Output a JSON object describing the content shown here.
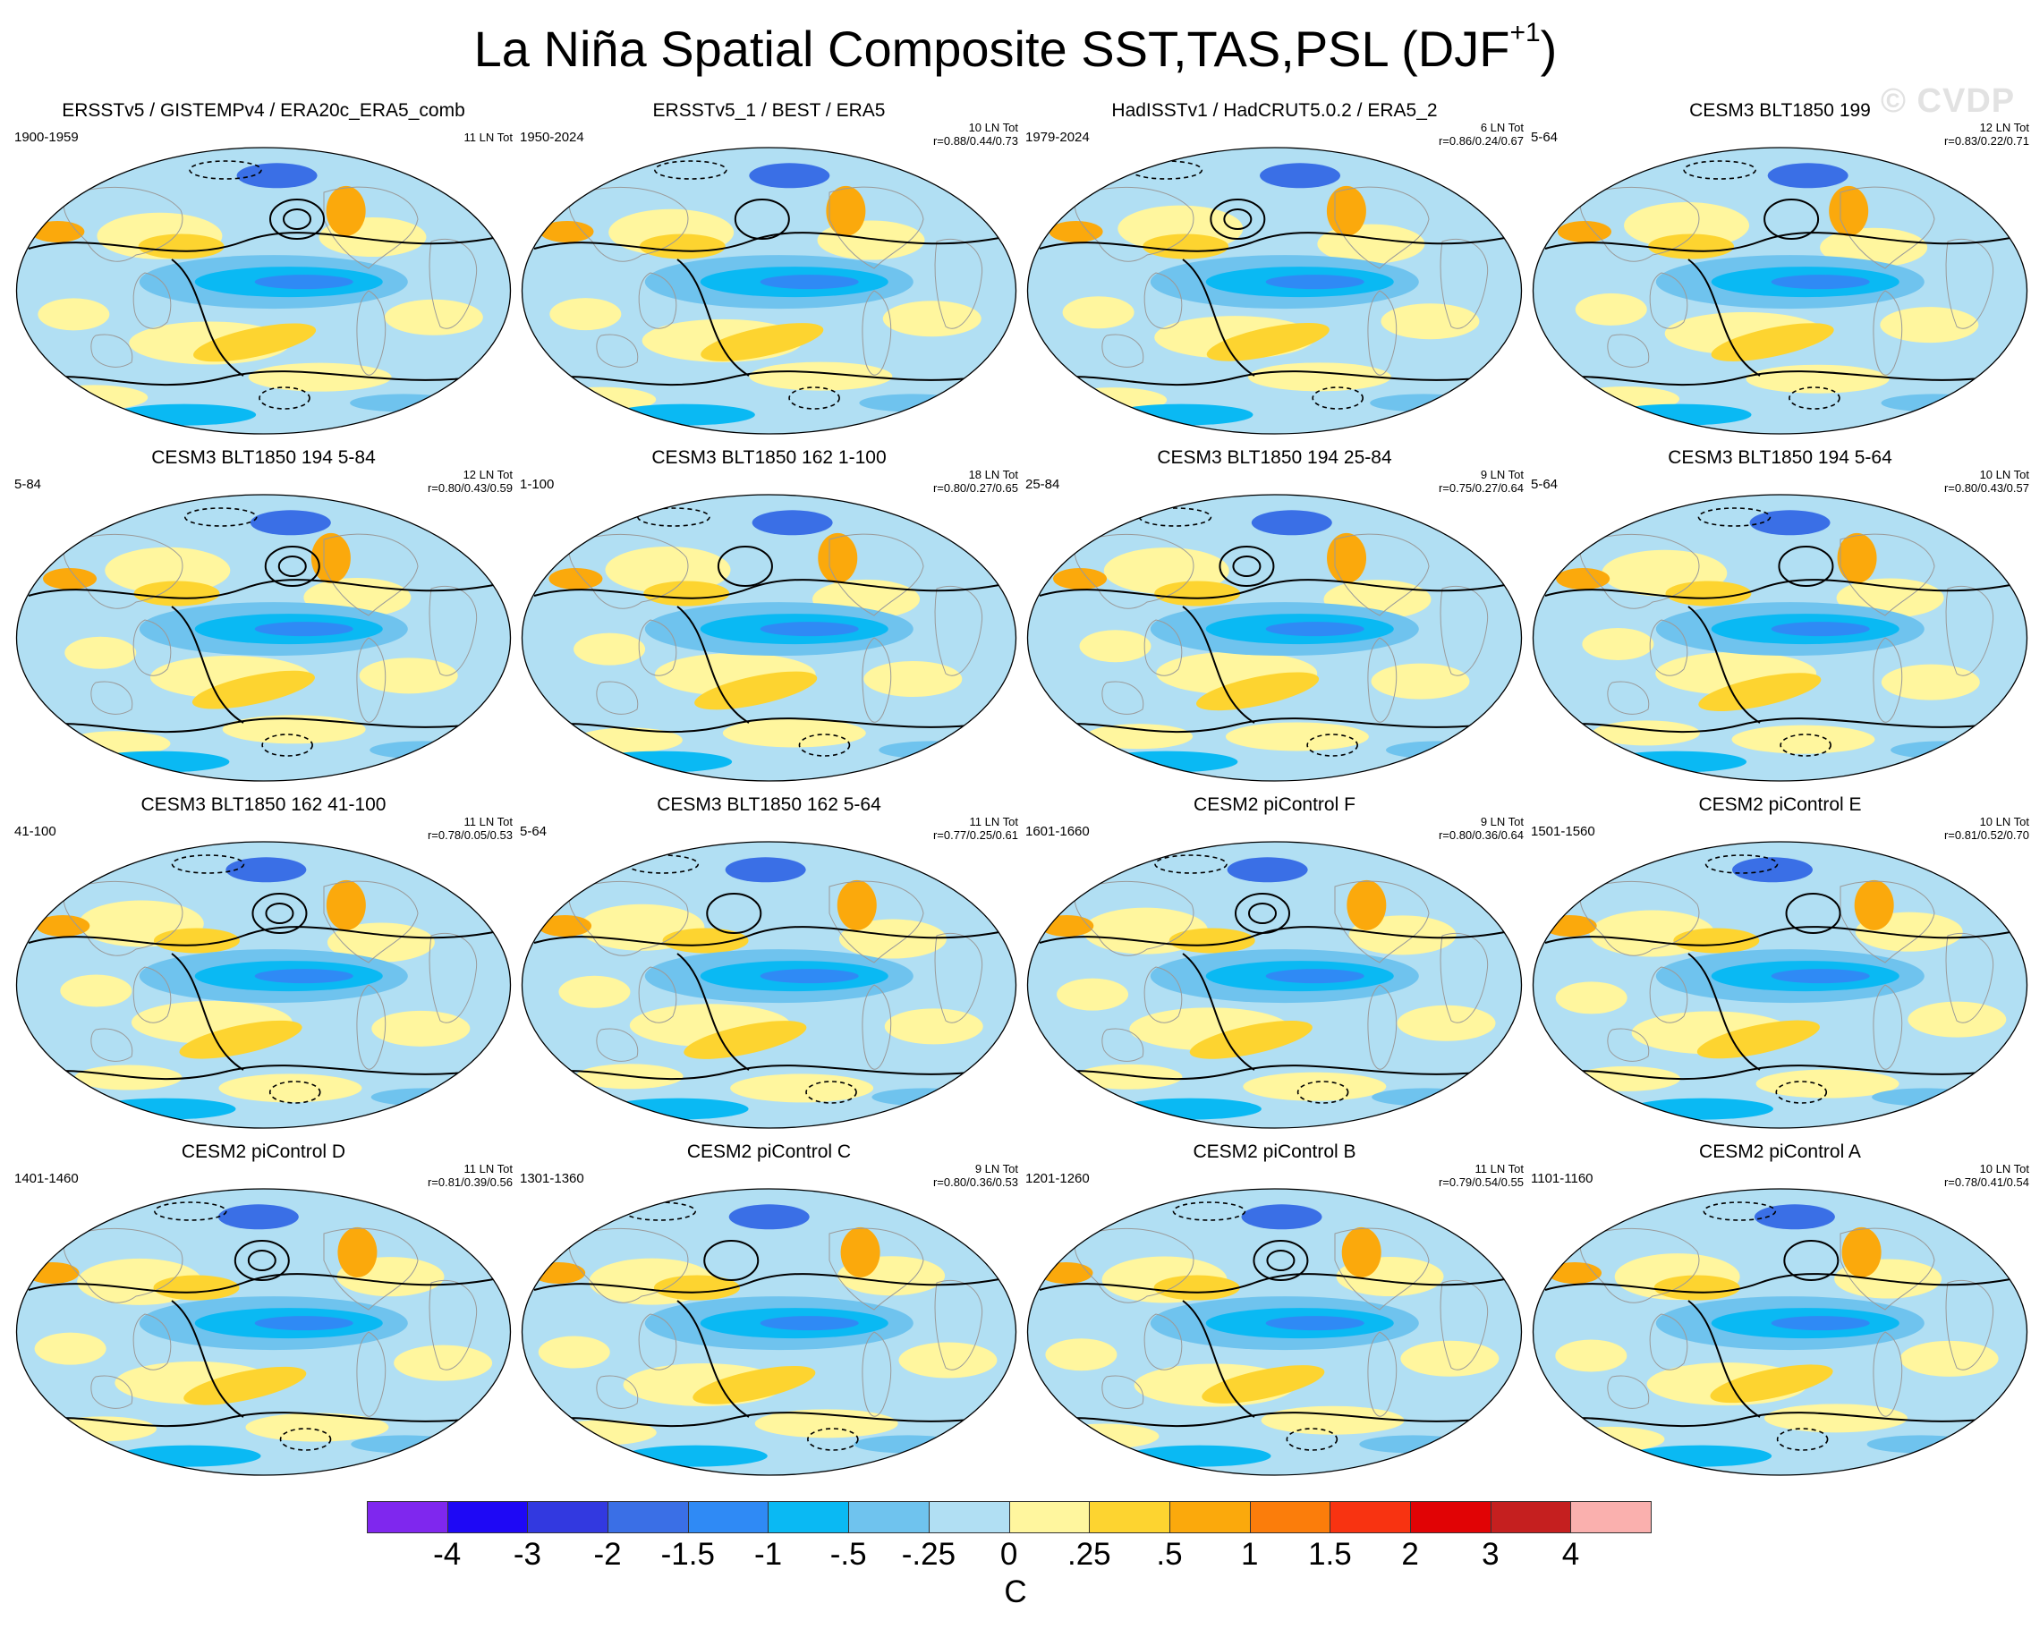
{
  "title": {
    "text": "La Niña Spatial Composite SST,TAS,PSL (DJF",
    "superscript": "+1",
    "close": ")"
  },
  "watermark": "© CVDP",
  "colors": {
    "land_edge": "#9a9a9a",
    "contour": "#000000",
    "background": "#ffffff"
  },
  "panels": [
    {
      "title": "ERSSTv5 / GISTEMPv4 / ERA20c_ERA5_comb",
      "period": "1900-1959",
      "count": "11 LN Tot",
      "stats": ""
    },
    {
      "title": "ERSSTv5_1 / BEST / ERA5",
      "period": "1950-2024",
      "count": "10 LN Tot",
      "stats": "r=0.88/0.44/0.73"
    },
    {
      "title": "HadISSTv1 / HadCRUT5.0.2 / ERA5_2",
      "period": "1979-2024",
      "count": "6 LN Tot",
      "stats": "r=0.86/0.24/0.67"
    },
    {
      "title": "CESM3 BLT1850 199",
      "period": "5-64",
      "count": "12 LN Tot",
      "stats": "r=0.83/0.22/0.71"
    },
    {
      "title": "CESM3 BLT1850 194 5-84",
      "period": "5-84",
      "count": "12 LN Tot",
      "stats": "r=0.80/0.43/0.59"
    },
    {
      "title": "CESM3 BLT1850 162 1-100",
      "period": "1-100",
      "count": "18 LN Tot",
      "stats": "r=0.80/0.27/0.65"
    },
    {
      "title": "CESM3 BLT1850 194 25-84",
      "period": "25-84",
      "count": "9 LN Tot",
      "stats": "r=0.75/0.27/0.64"
    },
    {
      "title": "CESM3 BLT1850 194 5-64",
      "period": "5-64",
      "count": "10 LN Tot",
      "stats": "r=0.80/0.43/0.57"
    },
    {
      "title": "CESM3 BLT1850 162 41-100",
      "period": "41-100",
      "count": "11 LN Tot",
      "stats": "r=0.78/0.05/0.53"
    },
    {
      "title": "CESM3 BLT1850 162 5-64",
      "period": "5-64",
      "count": "11 LN Tot",
      "stats": "r=0.77/0.25/0.61"
    },
    {
      "title": "CESM2 piControl F",
      "period": "1601-1660",
      "count": "9 LN Tot",
      "stats": "r=0.80/0.36/0.64"
    },
    {
      "title": "CESM2 piControl E",
      "period": "1501-1560",
      "count": "10 LN Tot",
      "stats": "r=0.81/0.52/0.70"
    },
    {
      "title": "CESM2 piControl D",
      "period": "1401-1460",
      "count": "11 LN Tot",
      "stats": "r=0.81/0.39/0.56"
    },
    {
      "title": "CESM2 piControl C",
      "period": "1301-1360",
      "count": "9 LN Tot",
      "stats": "r=0.80/0.36/0.53"
    },
    {
      "title": "CESM2 piControl B",
      "period": "1201-1260",
      "count": "11 LN Tot",
      "stats": "r=0.79/0.54/0.55"
    },
    {
      "title": "CESM2 piControl A",
      "period": "1101-1160",
      "count": "10 LN Tot",
      "stats": "r=0.78/0.41/0.54"
    }
  ],
  "colorbar": {
    "colors": [
      "#7f27ee",
      "#1e08f5",
      "#3239e0",
      "#3a6fe6",
      "#2f8af5",
      "#0ab9f3",
      "#6fc3ee",
      "#b1dff3",
      "#fff69e",
      "#fdd430",
      "#fba90c",
      "#fb7d0b",
      "#f83311",
      "#e10305",
      "#c51f1f",
      "#fab0ae"
    ],
    "labels": [
      "-4",
      "-3",
      "-2",
      "-1.5",
      "-1",
      "-.5",
      "-.25",
      "0",
      ".25",
      ".5",
      "1",
      "1.5",
      "2",
      "3",
      "4"
    ],
    "unit": "C"
  }
}
